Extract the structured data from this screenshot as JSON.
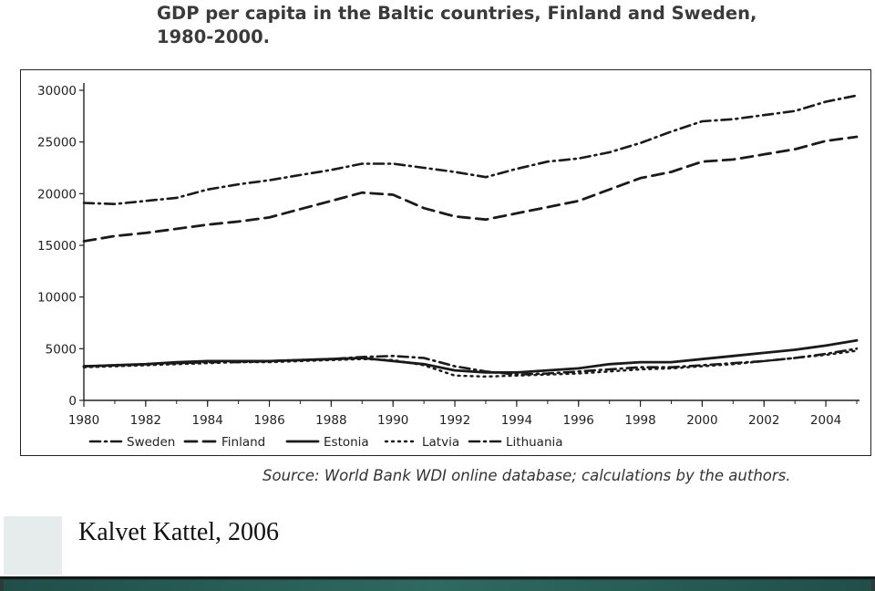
{
  "title": {
    "line1": "GDP per capita in the Baltic countries, Finland and Sweden,",
    "line2": "1980-2000."
  },
  "source": "Source: World Bank WDI online database; calculations by the authors.",
  "author": "Kalvet Kattel, 2006",
  "chart_data": {
    "type": "line",
    "xlim": [
      1980,
      2005
    ],
    "ylim": [
      0,
      30000
    ],
    "x_ticks": [
      "1980",
      "1982",
      "1984",
      "1986",
      "1988",
      "1990",
      "1992",
      "1994",
      "1996",
      "1998",
      "2000",
      "2002",
      "2004"
    ],
    "y_ticks": [
      "0",
      "5000",
      "10000",
      "15000",
      "20000",
      "25000",
      "30000"
    ],
    "grid": false,
    "legend_position": "bottom",
    "x": [
      1980,
      1981,
      1982,
      1983,
      1984,
      1985,
      1986,
      1987,
      1988,
      1989,
      1990,
      1991,
      1992,
      1993,
      1994,
      1995,
      1996,
      1997,
      1998,
      1999,
      2000,
      2001,
      2002,
      2003,
      2004,
      2005
    ],
    "series": [
      {
        "name": "Sweden",
        "style": "dash-dot",
        "values": [
          19100,
          19000,
          19300,
          19600,
          20400,
          20900,
          21300,
          21800,
          22300,
          22900,
          22900,
          22500,
          22100,
          21600,
          22400,
          23100,
          23400,
          24000,
          24900,
          26000,
          27000,
          27200,
          27600,
          28000,
          28900,
          29500
        ]
      },
      {
        "name": "Finland",
        "style": "dash",
        "values": [
          15400,
          15900,
          16200,
          16600,
          17000,
          17300,
          17700,
          18500,
          19300,
          20100,
          19900,
          18600,
          17800,
          17500,
          18100,
          18700,
          19300,
          20400,
          21500,
          22100,
          23100,
          23300,
          23800,
          24300,
          25100,
          25500
        ]
      },
      {
        "name": "Estonia",
        "style": "solid",
        "values": [
          3300,
          3400,
          3500,
          3700,
          3800,
          3800,
          3800,
          3900,
          4000,
          4100,
          3800,
          3500,
          2900,
          2700,
          2700,
          2900,
          3100,
          3500,
          3700,
          3700,
          4000,
          4300,
          4600,
          4900,
          5300,
          5800
        ]
      },
      {
        "name": "Latvia",
        "style": "dotted",
        "values": [
          3200,
          3300,
          3400,
          3500,
          3600,
          3700,
          3700,
          3800,
          3900,
          4000,
          3900,
          3400,
          2400,
          2300,
          2400,
          2500,
          2600,
          2800,
          3000,
          3100,
          3300,
          3500,
          3800,
          4100,
          4400,
          4800
        ]
      },
      {
        "name": "Lithuania",
        "style": "dash-dot",
        "values": [
          3300,
          3400,
          3500,
          3600,
          3700,
          3700,
          3800,
          3900,
          4000,
          4200,
          4300,
          4100,
          3300,
          2800,
          2500,
          2600,
          2800,
          3000,
          3200,
          3200,
          3400,
          3600,
          3800,
          4100,
          4500,
          5000
        ]
      }
    ]
  }
}
